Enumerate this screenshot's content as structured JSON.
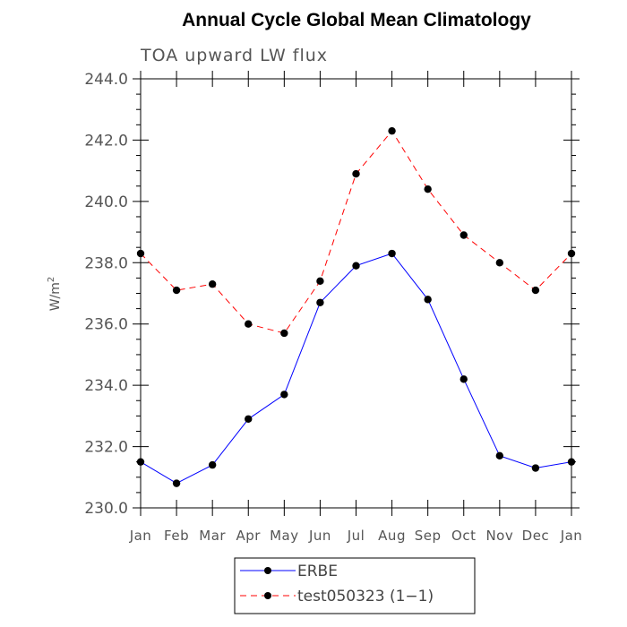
{
  "chart_data": {
    "type": "line",
    "title": "Annual Cycle Global Mean Climatology",
    "subtitle": "TOA upward LW flux",
    "ylabel": "W/m",
    "ylabel_superscript": "2",
    "xlabel": "",
    "categories": [
      "Jan",
      "Feb",
      "Mar",
      "Apr",
      "May",
      "Jun",
      "Jul",
      "Aug",
      "Sep",
      "Oct",
      "Nov",
      "Dec",
      "Jan"
    ],
    "ylim": [
      230.0,
      244.0
    ],
    "yticks": [
      "230.0",
      "232.0",
      "234.0",
      "236.0",
      "238.0",
      "240.0",
      "242.0",
      "244.0"
    ],
    "grid": false,
    "legend_position": "bottom-center",
    "series": [
      {
        "name": "ERBE",
        "color": "#0000ff",
        "dash": "solid",
        "values": [
          231.5,
          230.8,
          231.4,
          232.9,
          233.7,
          236.7,
          237.9,
          238.3,
          236.8,
          234.2,
          231.7,
          231.3,
          231.5
        ]
      },
      {
        "name": "test050323 (1−1)",
        "color": "#ff0000",
        "dash": "dashed",
        "values": [
          238.3,
          237.1,
          237.3,
          236.0,
          235.7,
          237.4,
          240.9,
          242.3,
          240.4,
          238.9,
          238.0,
          237.1,
          238.3
        ]
      }
    ]
  }
}
